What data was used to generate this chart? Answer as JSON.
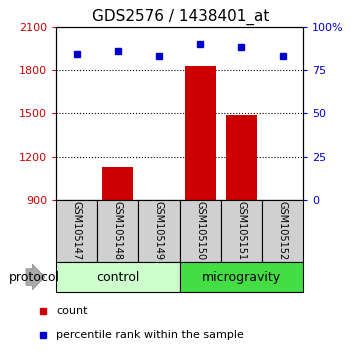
{
  "title": "GDS2576 / 1438401_at",
  "samples": [
    "GSM105147",
    "GSM105148",
    "GSM105149",
    "GSM105150",
    "GSM105151",
    "GSM105152"
  ],
  "counts": [
    870,
    1130,
    890,
    1830,
    1490,
    890
  ],
  "percentile_ranks": [
    84,
    86,
    83,
    90,
    88,
    83
  ],
  "ylim_left": [
    900,
    2100
  ],
  "ylim_right": [
    0,
    100
  ],
  "yticks_left": [
    900,
    1200,
    1500,
    1800,
    2100
  ],
  "yticks_right": [
    0,
    25,
    50,
    75,
    100
  ],
  "bar_color": "#cc0000",
  "dot_color": "#0000cc",
  "grid_lines": [
    1200,
    1500,
    1800
  ],
  "groups": [
    {
      "name": "control",
      "color": "#ccffcc",
      "start": 0,
      "end": 3
    },
    {
      "name": "microgravity",
      "color": "#44dd44",
      "start": 3,
      "end": 6
    }
  ],
  "group_label": "protocol",
  "legend_items": [
    {
      "label": "count",
      "color": "#cc0000"
    },
    {
      "label": "percentile rank within the sample",
      "color": "#0000cc"
    }
  ],
  "label_bg_color": "#d0d0d0",
  "title_fontsize": 11,
  "tick_fontsize": 8,
  "label_fontsize": 7,
  "proto_fontsize": 9,
  "legend_fontsize": 8
}
